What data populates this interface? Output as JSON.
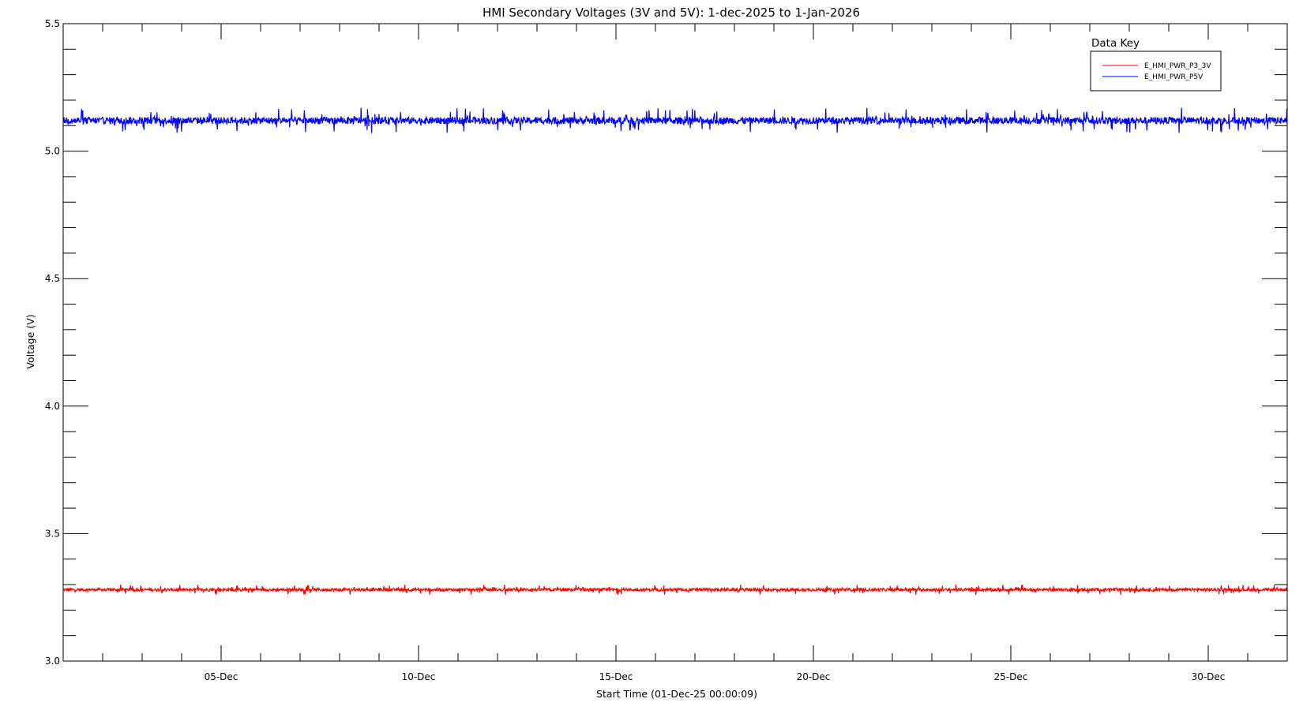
{
  "chart_data": {
    "type": "line",
    "title": "HMI Secondary Voltages (3V and 5V): 1-dec-2025 to 1-Jan-2026",
    "xlabel": "Start Time (01-Dec-25 00:00:09)",
    "ylabel": "Voltage (V)",
    "x_range": [
      "2025-12-01",
      "2026-01-01"
    ],
    "ylim": [
      3.0,
      5.5
    ],
    "y_ticks": [
      "3.0",
      "3.5",
      "4.0",
      "4.5",
      "5.0",
      "5.5"
    ],
    "x_ticks": [
      {
        "date": "2025-12-05",
        "label": "05-Dec"
      },
      {
        "date": "2025-12-10",
        "label": "10-Dec"
      },
      {
        "date": "2025-12-15",
        "label": "15-Dec"
      },
      {
        "date": "2025-12-20",
        "label": "20-Dec"
      },
      {
        "date": "2025-12-25",
        "label": "25-Dec"
      },
      {
        "date": "2025-12-30",
        "label": "30-Dec"
      }
    ],
    "grid": false,
    "legend": {
      "title": "Data Key",
      "position": "top-right"
    },
    "series": [
      {
        "name": "E_HMI_PWR_P3_3V",
        "color": "#ff0000",
        "mean": 3.28,
        "range": [
          3.26,
          3.3
        ]
      },
      {
        "name": "E_HMI_PWR_P5V",
        "color": "#0000ff",
        "mean": 5.12,
        "range": [
          5.06,
          5.16
        ]
      }
    ]
  }
}
